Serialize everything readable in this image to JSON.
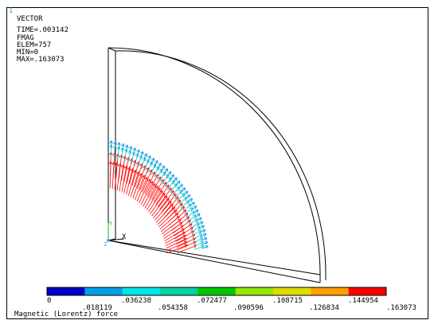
{
  "window_number": "1",
  "info": {
    "title": "VECTOR",
    "time": "TIME=.003142",
    "item": "FMAG",
    "elem": "ELEM=757",
    "min": "MIN=0",
    "max": "MAX=.163073"
  },
  "axes": {
    "x_label": "X",
    "y_label": "Y",
    "z_label": "Z"
  },
  "legend": {
    "colors": [
      "#0000c8",
      "#00a0e6",
      "#00e6e6",
      "#00d2a0",
      "#00c800",
      "#96e600",
      "#dcdc00",
      "#ffa000",
      "#ff0000"
    ],
    "top_labels": [
      "0",
      ".036238",
      ".072477",
      ".108715",
      ".144954"
    ],
    "bottom_labels": [
      ".018119",
      ".054358",
      ".090596",
      ".126834",
      ".163073"
    ]
  },
  "caption": "Magnetic (Lorentz) force"
}
